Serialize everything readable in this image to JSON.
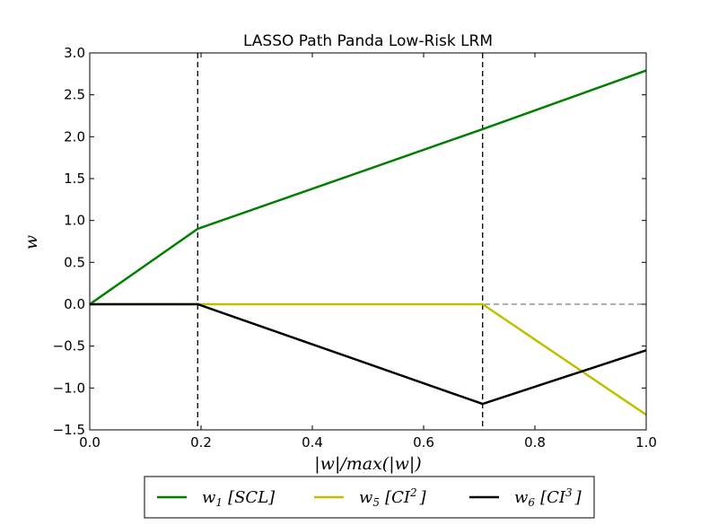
{
  "chart_data": {
    "type": "line",
    "title": "LASSO Path Panda Low-Risk LRM",
    "xlabel": "|w|/max(|w|)",
    "ylabel": "w",
    "xlim": [
      0.0,
      1.0
    ],
    "ylim": [
      -1.5,
      3.0
    ],
    "xticks": [
      0.0,
      0.2,
      0.4,
      0.6,
      0.8,
      1.0
    ],
    "xtick_labels": [
      "0.0",
      "0.2",
      "0.4",
      "0.6",
      "0.8",
      "1.0"
    ],
    "yticks": [
      -1.5,
      -1.0,
      -0.5,
      0.0,
      0.5,
      1.0,
      1.5,
      2.0,
      2.5,
      3.0
    ],
    "ytick_labels": [
      "−1.5",
      "−1.0",
      "−0.5",
      "0.0",
      "0.5",
      "1.0",
      "1.5",
      "2.0",
      "2.5",
      "3.0"
    ],
    "grid": false,
    "vlines": [
      0.194,
      0.706
    ],
    "zero_line": true,
    "legend_position": "below",
    "series": [
      {
        "name": "w_1 [SCL]",
        "label_main": "w",
        "label_sub": "1",
        "label_tag": "SCL",
        "label_sup": "",
        "color": "#008000",
        "x": [
          0.0,
          0.194,
          0.706,
          1.0
        ],
        "y": [
          0.0,
          0.9,
          2.09,
          2.79
        ]
      },
      {
        "name": "w_5 [CI^2]",
        "label_main": "w",
        "label_sub": "5",
        "label_tag": "CI",
        "label_sup": "2",
        "color": "#bfbf00",
        "x": [
          0.0,
          0.194,
          0.706,
          1.0
        ],
        "y": [
          0.0,
          0.0,
          0.0,
          -1.32
        ]
      },
      {
        "name": "w_6 [CI^3]",
        "label_main": "w",
        "label_sub": "6",
        "label_tag": "CI",
        "label_sup": "3",
        "color": "#000000",
        "x": [
          0.0,
          0.194,
          0.706,
          1.0
        ],
        "y": [
          0.0,
          0.0,
          -1.19,
          -0.55
        ]
      }
    ]
  }
}
